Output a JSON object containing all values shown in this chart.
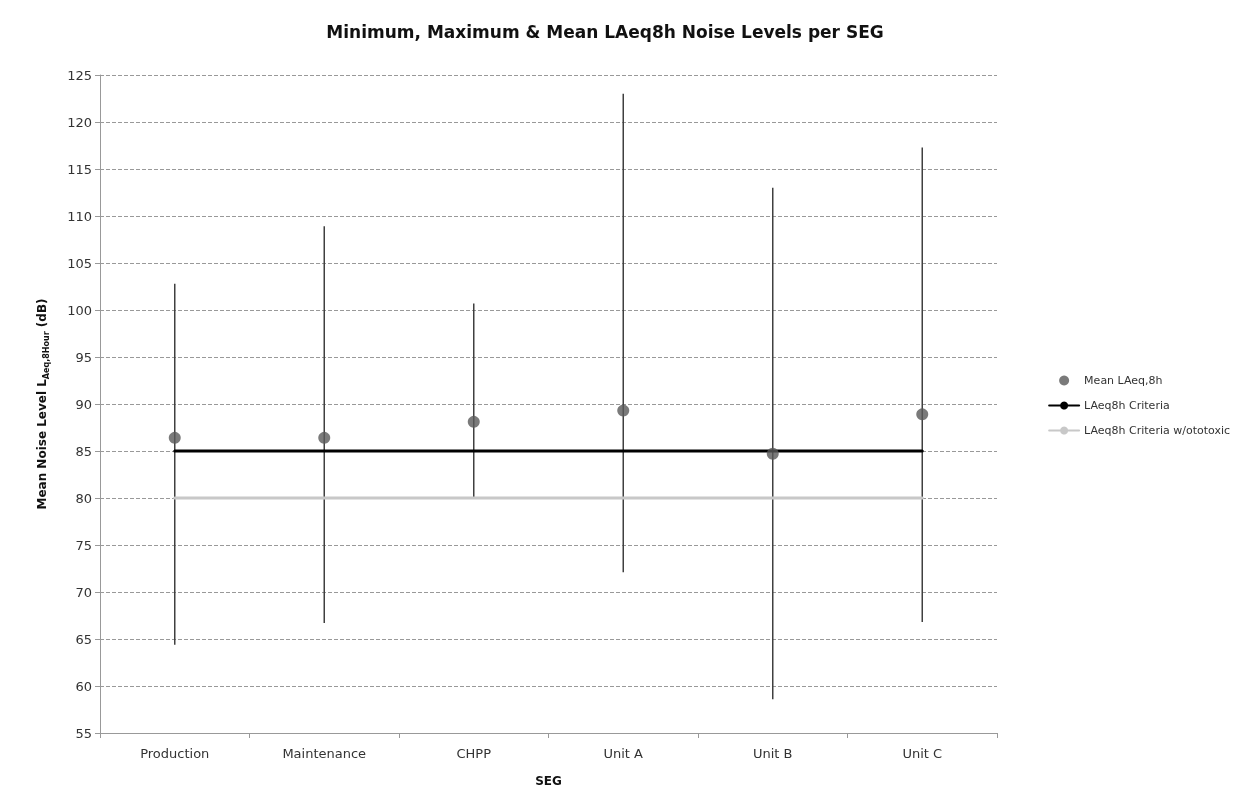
{
  "chart_data": {
    "type": "scatter",
    "title": "Minimum, Maximum & Mean LAeq8h Noise Levels per SEG",
    "xlabel": "SEG",
    "ylabel": "Mean Noise Level L$_{Aeq,8Hour}$ (dB)",
    "categories": [
      "Production",
      "Maintenance",
      "CHPP",
      "Unit A",
      "Unit B",
      "Unit C"
    ],
    "series": [
      {
        "name": "Mean LAeq,8h",
        "type": "scatter",
        "color": "#595959",
        "values": [
          86.4,
          86.4,
          88.1,
          89.3,
          84.7,
          88.9
        ],
        "errors": [
          [
            64.4,
            102.8
          ],
          [
            66.7,
            108.9
          ],
          [
            79.9,
            100.7
          ],
          [
            72.1,
            123.0
          ],
          [
            58.6,
            113.0
          ],
          [
            66.8,
            117.3
          ]
        ]
      },
      {
        "name": "LAeq8h Criteria",
        "type": "line",
        "marker": "none",
        "color": "#000000",
        "values": [
          85,
          85,
          85,
          85,
          85,
          85
        ]
      },
      {
        "name": "LAeq8h Criteria w/ototoxic",
        "type": "line",
        "marker": "none",
        "color": "#c8c8c8",
        "values": [
          80,
          80,
          80,
          80,
          80,
          80
        ]
      }
    ],
    "ylim": [
      55,
      125
    ],
    "yticks": [
      55,
      60,
      65,
      70,
      75,
      80,
      85,
      90,
      95,
      100,
      105,
      110,
      115,
      120,
      125
    ],
    "grid": "y",
    "legend": "right",
    "marker": "circle",
    "line_style": "solid"
  }
}
